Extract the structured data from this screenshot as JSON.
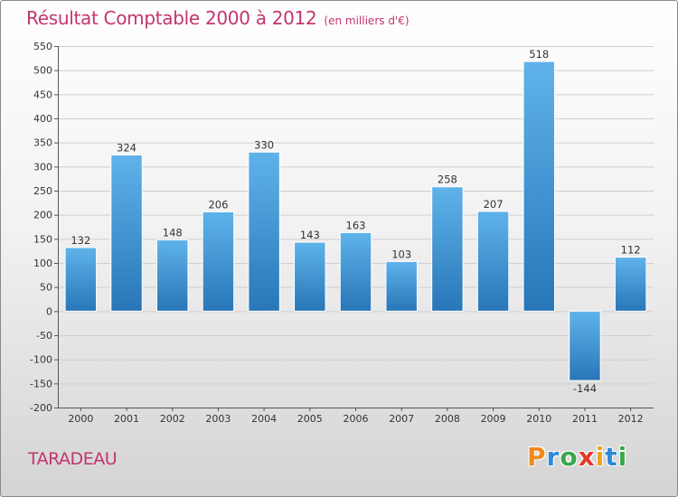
{
  "title": "Résultat Comptable 2000 à 2012",
  "subtitle": "(en milliers d'€)",
  "commune": "TARADEAU",
  "logo": {
    "letters": [
      "P",
      "r",
      "o",
      "x",
      "i",
      "t",
      "i"
    ],
    "colors": [
      "#f08a1e",
      "#2f8ad8",
      "#3aa84a",
      "#e23b2e",
      "#f0a020",
      "#2f8ad8",
      "#3aa84a"
    ]
  },
  "colors": {
    "bar_top": "#5fb3ea",
    "bar_bottom": "#2876b8",
    "title": "#c2356f"
  },
  "chart_data": {
    "type": "bar",
    "title": "Résultat Comptable 2000 à 2012",
    "subtitle": "(en milliers d'€)",
    "categories": [
      "2000",
      "2001",
      "2002",
      "2003",
      "2004",
      "2005",
      "2006",
      "2007",
      "2008",
      "2009",
      "2010",
      "2011",
      "2012"
    ],
    "values": [
      132,
      324,
      148,
      206,
      330,
      143,
      163,
      103,
      258,
      207,
      518,
      -144,
      112
    ],
    "ylim": [
      -200,
      550
    ],
    "yticks": [
      -200,
      -150,
      -100,
      -50,
      0,
      50,
      100,
      150,
      200,
      250,
      300,
      350,
      400,
      450,
      500,
      550
    ],
    "ytick_labels": [
      "-200",
      "-150",
      "-100",
      "-50",
      "0",
      "50",
      "100",
      "150",
      "200",
      "250",
      "300",
      "350",
      "400",
      "450",
      "500",
      "550"
    ],
    "value_labels": [
      "132",
      "324",
      "148",
      "206",
      "330",
      "143",
      "163",
      "103",
      "258",
      "207",
      "518",
      "-144",
      "112"
    ],
    "grid": true,
    "xlabel": "",
    "ylabel": ""
  }
}
